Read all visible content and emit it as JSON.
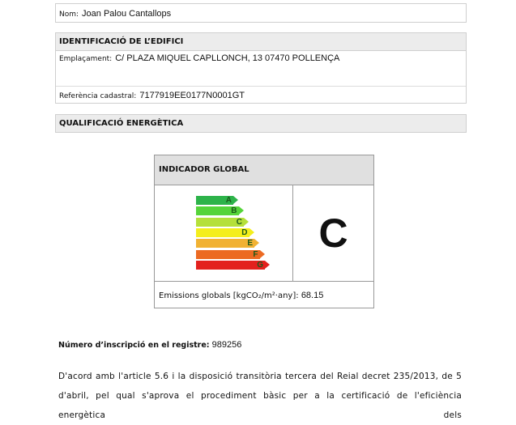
{
  "owner": {
    "name_label": "Nom:",
    "name_value": "Joan Palou Cantallops"
  },
  "building": {
    "title": "IDENTIFICACIÓ DE L’EDIFICI",
    "location_label": "Emplaçament:",
    "location_value": "C/ PLAZA MIQUEL CAPLLONCH, 13 07470 POLLENÇA",
    "cadastral_label": "Referència cadastral:",
    "cadastral_value": "7177919EE0177N0001GT"
  },
  "rating": {
    "title": "QUALIFICACIÓ ENERGÈTICA",
    "indicator_title": "INDICADOR GLOBAL",
    "grade": "C",
    "scale": [
      {
        "letter": "A",
        "color": "#2db34a"
      },
      {
        "letter": "B",
        "color": "#55d43a"
      },
      {
        "letter": "C",
        "color": "#b5e03a"
      },
      {
        "letter": "D",
        "color": "#f4ee1c"
      },
      {
        "letter": "E",
        "color": "#f1b233"
      },
      {
        "letter": "F",
        "color": "#ec6a22"
      },
      {
        "letter": "G",
        "color": "#e3211d"
      }
    ],
    "emissions_label": "Emissions globals [kgCO₂/m²·any]:",
    "emissions_value": "68.15"
  },
  "registry": {
    "label": "Número d’inscripció en el registre:",
    "value": "989256"
  },
  "paragraph": [
    "D'acord amb l'article 5.6 i la disposició transitòria tercera del Reial decret 235/2013, de 5",
    "d'abril, pel qual s'aprova el procediment bàsic per a la certificació de l'eficiència energètica dels"
  ]
}
